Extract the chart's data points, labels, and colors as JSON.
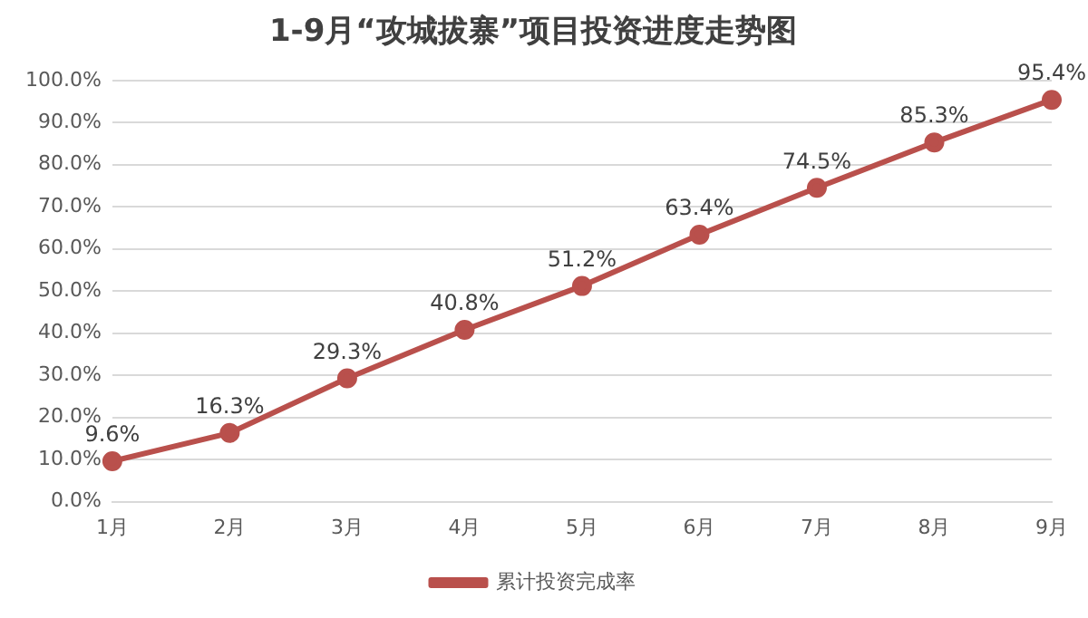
{
  "chart_data": {
    "type": "line",
    "title": "1-9月“攻城拔寨”项目投资进度走势图",
    "categories": [
      "1月",
      "2月",
      "3月",
      "4月",
      "5月",
      "6月",
      "7月",
      "8月",
      "9月"
    ],
    "series": [
      {
        "name": "累计投资完成率",
        "color": "#b9504c",
        "values": [
          9.6,
          16.3,
          29.3,
          40.8,
          51.2,
          63.4,
          74.5,
          85.3,
          95.4
        ],
        "value_labels": [
          "9.6%",
          "16.3%",
          "29.3%",
          "40.8%",
          "51.2%",
          "63.4%",
          "74.5%",
          "85.3%",
          "95.4%"
        ]
      }
    ],
    "ylim": [
      0,
      100
    ],
    "yticks": [
      {
        "value": 0,
        "label": "0.0%"
      },
      {
        "value": 10,
        "label": "10.0%"
      },
      {
        "value": 20,
        "label": "20.0%"
      },
      {
        "value": 30,
        "label": "30.0%"
      },
      {
        "value": 40,
        "label": "40.0%"
      },
      {
        "value": 50,
        "label": "50.0%"
      },
      {
        "value": 60,
        "label": "60.0%"
      },
      {
        "value": 70,
        "label": "70.0%"
      },
      {
        "value": 80,
        "label": "80.0%"
      },
      {
        "value": 90,
        "label": "90.0%"
      },
      {
        "value": 100,
        "label": "100.0%"
      }
    ],
    "grid": "y",
    "legend": "bottom",
    "marker": "circle",
    "line_style": "solid"
  }
}
